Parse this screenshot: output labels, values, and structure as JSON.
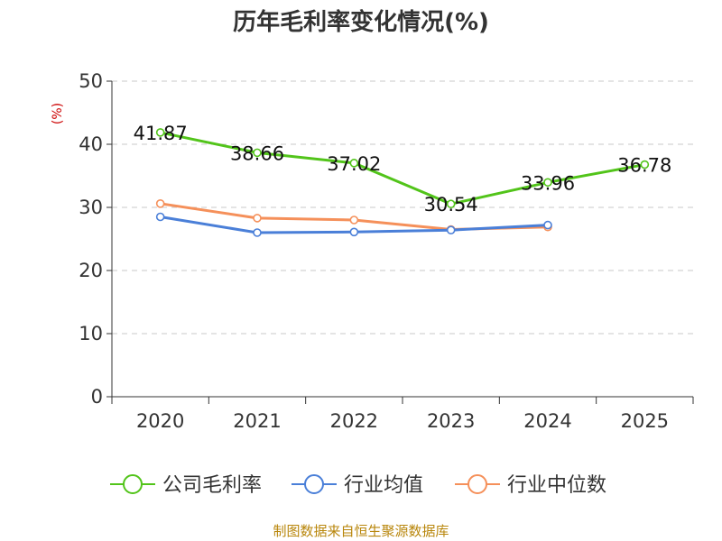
{
  "chart_data": {
    "type": "line",
    "title": "历年毛利率变化情况(%)",
    "ylabel": "(%)",
    "xlabel": "",
    "categories": [
      "2020",
      "2021",
      "2022",
      "2023",
      "2024",
      "2025"
    ],
    "ylim": [
      0,
      50
    ],
    "yticks": [
      0,
      10,
      20,
      30,
      40,
      50
    ],
    "grid": true,
    "legend_position": "bottom",
    "series": [
      {
        "name": "公司毛利率",
        "color": "#52c41a",
        "values": [
          41.87,
          38.66,
          37.02,
          30.54,
          33.96,
          36.78
        ],
        "labels": [
          "41.87",
          "38.66",
          "37.02",
          "30.54",
          "33.96",
          "36.78"
        ]
      },
      {
        "name": "行业均值",
        "color": "#4a7fd8",
        "values": [
          28.5,
          26.0,
          26.1,
          26.4,
          27.2,
          null
        ]
      },
      {
        "name": "行业中位数",
        "color": "#f5905a",
        "values": [
          30.6,
          28.3,
          28.0,
          26.5,
          26.9,
          null
        ]
      }
    ]
  },
  "source": "制图数据来自恒生聚源数据库"
}
